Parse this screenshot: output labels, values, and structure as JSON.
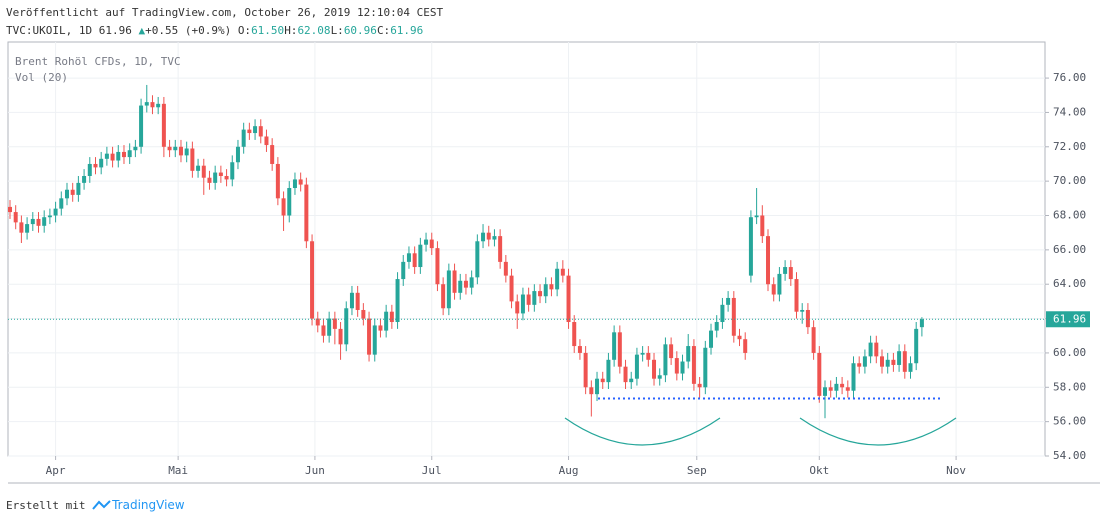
{
  "header": {
    "published": "Veröffentlicht auf TradingView.com, October 26, 2019 12:10:04 CEST",
    "symbol": "TVC:UKOIL, 1D",
    "last": "61.96",
    "change": "+0.55 (+0.9%)",
    "ohlc": [
      {
        "label": "O:",
        "value": "61.50"
      },
      {
        "label": "H:",
        "value": "62.08"
      },
      {
        "label": "L:",
        "value": "60.96"
      },
      {
        "label": "C:",
        "value": "61.96"
      }
    ]
  },
  "chart_data": {
    "type": "candlestick",
    "legend": [
      "Brent Rohöl CFDs, 1D, TVC",
      "Vol (20)"
    ],
    "up_color": "#26a69a",
    "down_color": "#ef5350",
    "grid": true,
    "open": [
      68.5,
      68.2,
      67.6,
      67.0,
      67.5,
      67.8,
      67.4,
      67.9,
      68.0,
      68.4,
      69.0,
      69.5,
      69.2,
      69.9,
      70.3,
      71.0,
      70.8,
      71.3,
      71.6,
      71.2,
      71.7,
      71.4,
      71.8,
      72.0,
      74.4,
      74.6,
      74.3,
      74.5,
      72.0,
      71.8,
      72.0,
      71.5,
      71.9,
      70.6,
      70.9,
      70.2,
      69.9,
      70.5,
      70.3,
      70.1,
      71.1,
      72.0,
      73.0,
      72.8,
      73.2,
      72.6,
      72.1,
      71.0,
      69.0,
      68.0,
      69.6,
      70.1,
      69.8,
      66.5,
      62.0,
      61.6,
      61.0,
      62.0,
      61.4,
      60.5,
      62.6,
      63.5,
      62.5,
      62.0,
      59.9,
      61.6,
      61.3,
      62.4,
      61.8,
      64.3,
      65.3,
      65.8,
      65.0,
      66.3,
      66.6,
      66.1,
      64.0,
      62.6,
      64.8,
      63.5,
      64.2,
      63.8,
      64.4,
      66.5,
      67.0,
      66.6,
      66.8,
      65.3,
      64.5,
      63.0,
      62.3,
      63.4,
      62.8,
      63.6,
      63.3,
      64.0,
      63.7,
      64.9,
      64.5,
      61.8,
      60.4,
      60.0,
      58.0,
      57.6,
      58.5,
      58.3,
      59.6,
      61.2,
      59.2,
      58.3,
      58.5,
      59.9,
      60.0,
      59.6,
      58.5,
      58.7,
      60.5,
      59.7,
      58.8,
      59.5,
      60.4,
      58.2,
      58.0,
      60.3,
      61.3,
      61.8,
      62.8,
      63.2,
      61.0,
      60.8,
      64.5,
      67.9,
      68.0,
      66.8,
      64.0,
      63.4,
      64.6,
      65.0,
      64.3,
      62.4,
      62.5,
      61.5,
      60.0,
      57.5,
      58.0,
      57.8,
      58.2,
      58.0,
      57.8,
      59.4,
      59.2,
      59.8,
      60.6,
      59.8,
      59.2,
      59.6,
      59.3,
      60.1,
      58.9,
      59.4,
      61.5
    ],
    "high": [
      68.9,
      68.6,
      68.0,
      67.9,
      68.2,
      68.2,
      68.3,
      68.4,
      68.8,
      69.4,
      69.9,
      69.9,
      70.3,
      70.7,
      71.4,
      71.4,
      71.7,
      72.0,
      72.0,
      72.1,
      72.1,
      72.2,
      72.4,
      74.8,
      75.6,
      75.0,
      74.9,
      74.9,
      72.4,
      72.4,
      72.4,
      72.3,
      72.3,
      71.3,
      71.3,
      70.6,
      70.9,
      70.9,
      70.7,
      71.5,
      72.4,
      73.4,
      73.4,
      73.6,
      73.6,
      73.0,
      72.5,
      71.4,
      69.4,
      70.0,
      70.5,
      70.5,
      70.2,
      66.9,
      62.4,
      62.0,
      62.4,
      62.4,
      61.8,
      63.0,
      63.9,
      63.9,
      62.9,
      62.4,
      62.0,
      62.0,
      62.8,
      62.8,
      64.7,
      65.7,
      66.2,
      66.2,
      66.7,
      67.0,
      67.0,
      66.5,
      64.4,
      65.2,
      65.2,
      64.6,
      64.6,
      64.8,
      66.9,
      67.5,
      67.4,
      67.2,
      67.2,
      65.7,
      64.9,
      63.4,
      63.8,
      63.8,
      64.0,
      64.0,
      64.4,
      64.4,
      65.3,
      65.4,
      64.9,
      62.2,
      60.8,
      60.4,
      58.4,
      58.9,
      58.9,
      60.0,
      61.6,
      61.6,
      59.6,
      58.9,
      60.3,
      60.4,
      60.4,
      60.0,
      59.1,
      60.9,
      60.9,
      60.1,
      59.9,
      61.1,
      60.8,
      58.6,
      60.7,
      61.7,
      62.2,
      63.2,
      63.6,
      63.6,
      61.4,
      61.2,
      68.3,
      69.6,
      68.6,
      67.2,
      64.4,
      65.0,
      65.4,
      65.4,
      64.7,
      62.9,
      62.9,
      61.9,
      60.4,
      58.4,
      58.4,
      58.6,
      58.6,
      58.4,
      59.8,
      59.8,
      60.2,
      61.0,
      61.0,
      60.2,
      60.0,
      60.0,
      60.5,
      60.5,
      59.8,
      61.8,
      62.08
    ],
    "low": [
      67.8,
      67.2,
      66.4,
      66.6,
      67.1,
      67.0,
      67.0,
      67.5,
      67.6,
      68.0,
      68.6,
      68.8,
      68.8,
      69.5,
      69.9,
      70.4,
      70.4,
      70.9,
      70.8,
      70.8,
      71.0,
      71.0,
      71.4,
      71.6,
      74.0,
      73.9,
      73.9,
      71.4,
      71.4,
      71.4,
      71.1,
      71.1,
      70.2,
      70.2,
      69.2,
      69.5,
      69.5,
      69.9,
      69.7,
      69.7,
      70.7,
      71.6,
      72.4,
      72.4,
      72.2,
      71.7,
      70.6,
      68.6,
      67.1,
      67.6,
      69.2,
      69.4,
      66.1,
      61.6,
      61.2,
      60.6,
      60.6,
      60.5,
      59.6,
      60.1,
      62.2,
      62.1,
      61.6,
      59.5,
      59.5,
      60.9,
      60.9,
      61.4,
      61.4,
      63.9,
      64.9,
      64.6,
      64.6,
      65.9,
      65.7,
      63.6,
      62.2,
      62.2,
      63.1,
      63.1,
      63.4,
      63.4,
      64.0,
      66.1,
      66.2,
      66.2,
      64.9,
      64.1,
      62.6,
      61.4,
      61.9,
      62.4,
      62.4,
      62.9,
      62.9,
      63.3,
      63.3,
      64.1,
      61.4,
      60.0,
      59.6,
      57.6,
      56.3,
      57.2,
      57.9,
      57.9,
      59.2,
      58.8,
      57.9,
      57.9,
      58.1,
      59.5,
      59.2,
      58.1,
      58.1,
      58.3,
      59.3,
      58.4,
      58.4,
      59.1,
      57.8,
      57.4,
      57.6,
      59.9,
      60.9,
      61.4,
      62.4,
      60.6,
      60.4,
      59.6,
      64.1,
      67.5,
      66.4,
      63.6,
      63.0,
      63.0,
      64.2,
      63.9,
      62.0,
      61.7,
      61.1,
      59.6,
      57.1,
      56.2,
      57.4,
      57.4,
      57.6,
      57.4,
      57.4,
      58.8,
      58.8,
      59.4,
      59.4,
      58.8,
      58.8,
      58.9,
      58.9,
      58.5,
      58.5,
      59.0,
      60.96
    ],
    "close": [
      68.2,
      67.6,
      67.0,
      67.5,
      67.8,
      67.4,
      67.9,
      68.0,
      68.4,
      69.0,
      69.5,
      69.2,
      69.9,
      70.3,
      71.0,
      70.8,
      71.3,
      71.6,
      71.2,
      71.7,
      71.4,
      71.8,
      72.0,
      74.4,
      74.6,
      74.3,
      74.5,
      72.0,
      71.8,
      72.0,
      71.5,
      71.9,
      70.6,
      70.9,
      70.2,
      69.9,
      70.5,
      70.3,
      70.1,
      71.1,
      72.0,
      73.0,
      72.8,
      73.2,
      72.6,
      72.1,
      71.0,
      69.0,
      68.0,
      69.6,
      70.1,
      69.8,
      66.5,
      62.0,
      61.6,
      61.0,
      62.0,
      61.4,
      60.5,
      62.6,
      63.5,
      62.5,
      62.0,
      59.9,
      61.6,
      61.3,
      62.4,
      61.8,
      64.3,
      65.3,
      65.8,
      65.0,
      66.3,
      66.6,
      66.1,
      64.0,
      62.6,
      64.8,
      63.5,
      64.2,
      63.8,
      64.4,
      66.5,
      67.0,
      66.6,
      66.8,
      65.3,
      64.5,
      63.0,
      62.3,
      63.4,
      62.8,
      63.6,
      63.3,
      64.0,
      63.7,
      64.9,
      64.5,
      61.8,
      60.4,
      60.0,
      58.0,
      57.6,
      58.5,
      58.3,
      59.6,
      61.2,
      59.2,
      58.3,
      58.5,
      59.9,
      60.0,
      59.6,
      58.5,
      58.7,
      60.5,
      59.7,
      58.8,
      59.5,
      60.4,
      58.2,
      58.0,
      60.3,
      61.3,
      61.8,
      62.8,
      63.2,
      61.0,
      60.8,
      60.0,
      67.9,
      68.0,
      66.8,
      64.0,
      63.4,
      64.6,
      65.0,
      64.3,
      62.4,
      62.5,
      61.5,
      60.0,
      57.5,
      58.0,
      57.8,
      58.2,
      58.0,
      57.8,
      59.4,
      59.2,
      59.8,
      60.6,
      59.8,
      59.2,
      59.6,
      59.3,
      60.1,
      58.9,
      59.4,
      61.4,
      61.96
    ],
    "xlim": [
      -0.35,
      181.6
    ],
    "xticks": [
      {
        "value": 8,
        "label": "Apr"
      },
      {
        "value": 29.5,
        "label": "Mai"
      },
      {
        "value": 53.5,
        "label": "Jun"
      },
      {
        "value": 74,
        "label": "Jul"
      },
      {
        "value": 98,
        "label": "Aug"
      },
      {
        "value": 120.5,
        "label": "Sep"
      },
      {
        "value": 142,
        "label": "Okt"
      },
      {
        "value": 166,
        "label": "Nov"
      }
    ],
    "ylim": [
      54,
      78.1
    ],
    "yticks": [
      {
        "value": 54,
        "label": "54.00"
      },
      {
        "value": 56,
        "label": "56.00"
      },
      {
        "value": 58,
        "label": "58.00"
      },
      {
        "value": 60,
        "label": "60.00"
      },
      {
        "value": 62,
        "label": "62.00"
      },
      {
        "value": 64,
        "label": "64.00"
      },
      {
        "value": 66,
        "label": "66.00"
      },
      {
        "value": 68,
        "label": "68.00"
      },
      {
        "value": 70,
        "label": "70.00"
      },
      {
        "value": 72,
        "label": "72.00"
      },
      {
        "value": 74,
        "label": "74.00"
      },
      {
        "value": 76,
        "label": "76.00"
      }
    ],
    "price_line": {
      "value": 61.96,
      "label": "61.96"
    }
  },
  "footer": {
    "text": "Erstellt mit",
    "brand": "TradingView"
  }
}
